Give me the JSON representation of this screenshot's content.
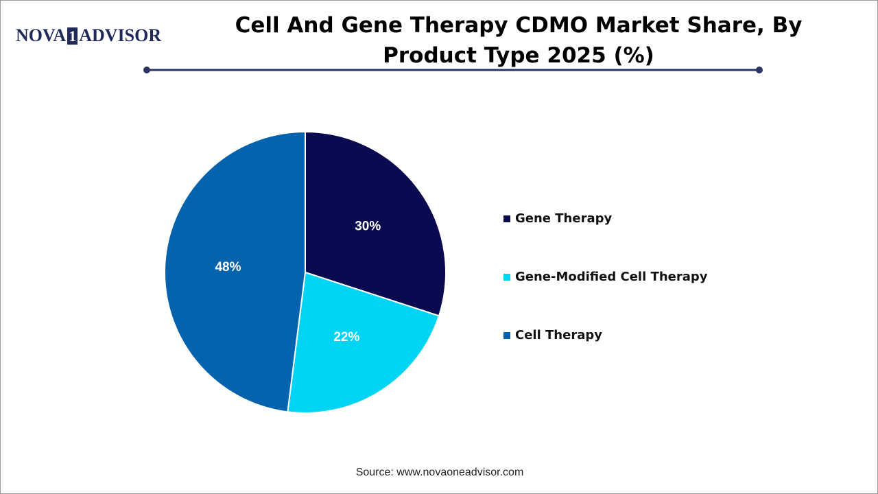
{
  "logo": [
    "NOVA",
    "1",
    "ADVISOR"
  ],
  "source": "Source: www.novaoneadvisor.com",
  "chart_data": {
    "type": "pie",
    "title": "Cell And Gene Therapy CDMO Market Share, By Product Type 2025 (%)",
    "categories": [
      "Gene Therapy",
      "Gene-Modified Cell Therapy",
      "Cell Therapy"
    ],
    "values": [
      30,
      22,
      48
    ],
    "value_labels": [
      "30%",
      "22%",
      "48%"
    ],
    "colors": [
      "#0a0a50",
      "#00d4f5",
      "#0562ad"
    ],
    "legend": "right"
  }
}
